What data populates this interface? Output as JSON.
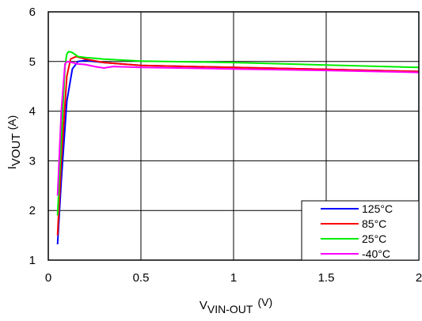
{
  "chart_data": {
    "type": "line",
    "title": "",
    "xlabel": {
      "main": "V",
      "sub": "VIN-OUT",
      "unit": "(V)"
    },
    "ylabel": {
      "main": "I",
      "sub": "VOUT",
      "unit": "(A)"
    },
    "xlim": [
      0,
      2
    ],
    "ylim": [
      1,
      6
    ],
    "xticks": [
      0,
      0.5,
      1,
      1.5,
      2
    ],
    "xtick_labels": [
      "0",
      "0.5",
      "1",
      "1.5",
      "2"
    ],
    "yticks": [
      1,
      2,
      3,
      4,
      5,
      6
    ],
    "ytick_labels": [
      "1",
      "2",
      "3",
      "4",
      "5",
      "6"
    ],
    "grid": true,
    "legend_position": "bottom-right",
    "series": [
      {
        "name": "125°C",
        "color": "#0000ff",
        "x": [
          0.05,
          0.07,
          0.1,
          0.13,
          0.16,
          0.2,
          0.3,
          0.5,
          1.0,
          1.5,
          2.0
        ],
        "y": [
          1.32,
          2.6,
          4.2,
          4.85,
          5.0,
          5.02,
          4.98,
          4.92,
          4.88,
          4.84,
          4.8
        ]
      },
      {
        "name": "85°C",
        "color": "#ff0000",
        "x": [
          0.05,
          0.07,
          0.1,
          0.12,
          0.15,
          0.2,
          0.3,
          0.5,
          1.0,
          1.5,
          2.0
        ],
        "y": [
          1.5,
          3.0,
          4.7,
          5.05,
          5.1,
          5.05,
          4.98,
          4.92,
          4.88,
          4.84,
          4.8
        ]
      },
      {
        "name": "25°C",
        "color": "#00ee00",
        "x": [
          0.05,
          0.07,
          0.09,
          0.1,
          0.11,
          0.13,
          0.16,
          0.2,
          0.3,
          0.5,
          1.0,
          1.5,
          2.0
        ],
        "y": [
          1.9,
          3.4,
          4.9,
          5.15,
          5.2,
          5.18,
          5.1,
          5.08,
          5.05,
          5.01,
          4.98,
          4.93,
          4.88
        ]
      },
      {
        "name": "-40°C",
        "color": "#ff00ff",
        "x": [
          0.05,
          0.07,
          0.09,
          0.1,
          0.13,
          0.16,
          0.2,
          0.25,
          0.3,
          0.35,
          0.5,
          1.0,
          1.5,
          2.0
        ],
        "y": [
          2.3,
          4.0,
          4.95,
          5.0,
          4.98,
          4.95,
          4.94,
          4.9,
          4.87,
          4.9,
          4.88,
          4.85,
          4.82,
          4.78
        ]
      }
    ]
  }
}
